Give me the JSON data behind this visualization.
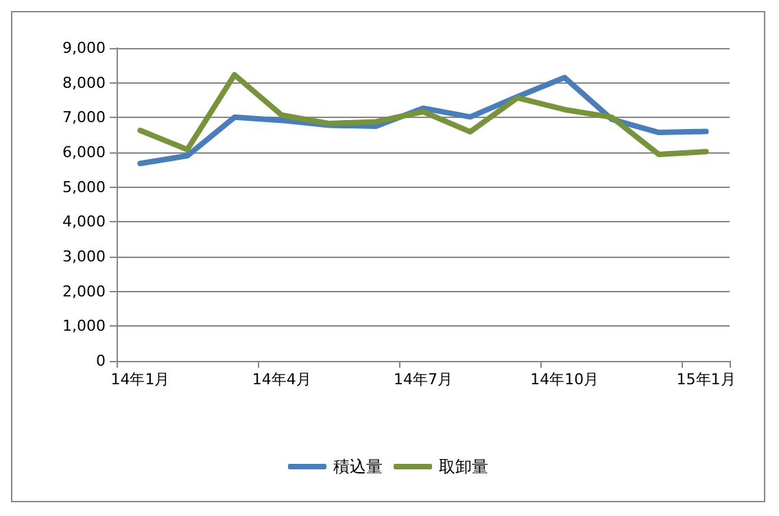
{
  "chart_data": {
    "type": "line",
    "categories": [
      "14年1月",
      null,
      null,
      "14年4月",
      null,
      null,
      "14年7月",
      null,
      null,
      "14年10月",
      null,
      null,
      "15年1月"
    ],
    "series": [
      {
        "name": "積込量",
        "color": "#4a7ebb",
        "values": [
          5680,
          5900,
          7010,
          6920,
          6780,
          6750,
          7270,
          7020,
          7600,
          8150,
          6950,
          6570,
          6600
        ]
      },
      {
        "name": "取卸量",
        "color": "#77933c",
        "values": [
          6630,
          6080,
          8230,
          7070,
          6830,
          6880,
          7170,
          6590,
          7570,
          7230,
          7010,
          5940,
          6020
        ]
      }
    ],
    "ylim": [
      0,
      9000
    ],
    "yticks": [
      {
        "value": 0,
        "label": "0"
      },
      {
        "value": 1000,
        "label": "1,000"
      },
      {
        "value": 2000,
        "label": "2,000"
      },
      {
        "value": 3000,
        "label": "3,000"
      },
      {
        "value": 4000,
        "label": "4,000"
      },
      {
        "value": 5000,
        "label": "5,000"
      },
      {
        "value": 6000,
        "label": "6,000"
      },
      {
        "value": 7000,
        "label": "7,000"
      },
      {
        "value": 8000,
        "label": "8,000"
      },
      {
        "value": 9000,
        "label": "9,000"
      }
    ],
    "grid": "y",
    "legend": "bottom",
    "marker": "none",
    "line_style": "solid"
  }
}
